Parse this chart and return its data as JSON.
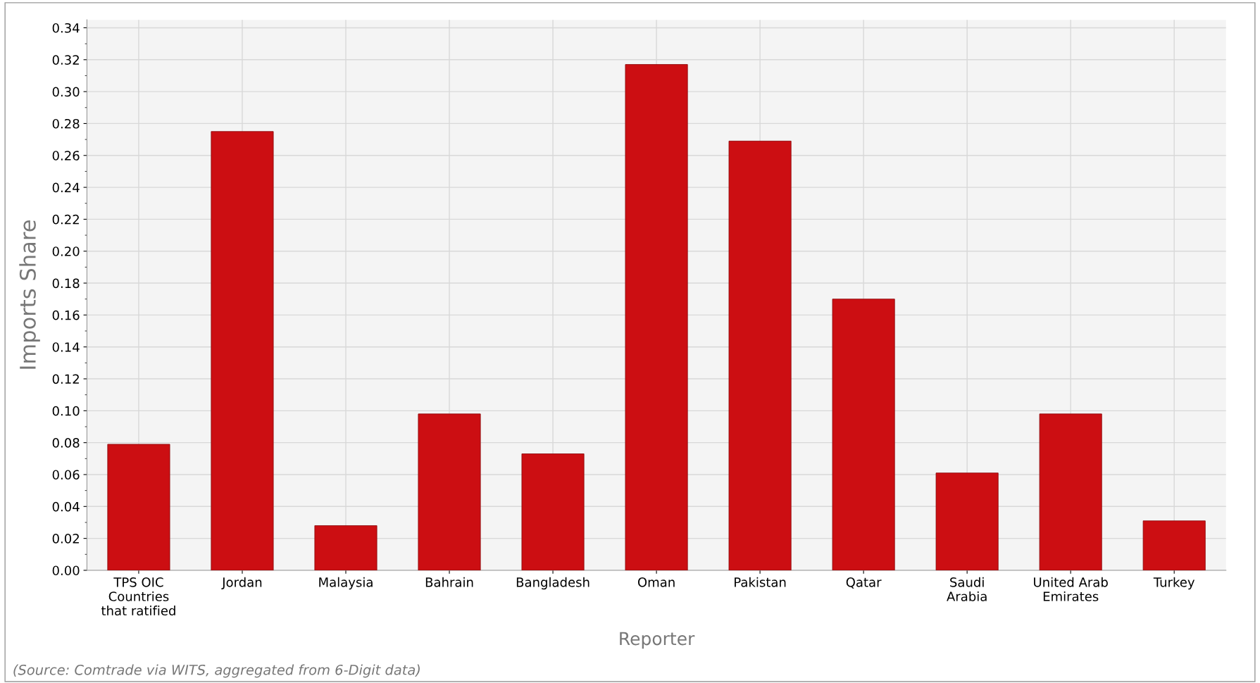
{
  "chart_data": {
    "type": "bar",
    "categories": [
      "TPS OIC\nCountries\nthat ratified",
      "Jordan",
      "Malaysia",
      "Bahrain",
      "Bangladesh",
      "Oman",
      "Pakistan",
      "Qatar",
      "Saudi\nArabia",
      "United Arab\nEmirates",
      "Turkey"
    ],
    "values": [
      0.079,
      0.275,
      0.028,
      0.098,
      0.073,
      0.317,
      0.269,
      0.17,
      0.061,
      0.098,
      0.031
    ],
    "color": "#cc0e12",
    "xlabel": "Reporter",
    "ylabel": "Imports Share",
    "ylim": [
      0,
      0.345
    ],
    "yticks": [
      {
        "value": 0,
        "label": "0.00"
      },
      {
        "value": 0.02,
        "label": "0.02"
      },
      {
        "value": 0.04,
        "label": "0.04"
      },
      {
        "value": 0.06,
        "label": "0.06"
      },
      {
        "value": 0.08,
        "label": "0.08"
      },
      {
        "value": 0.1,
        "label": "0.10"
      },
      {
        "value": 0.12,
        "label": "0.12"
      },
      {
        "value": 0.14,
        "label": "0.14"
      },
      {
        "value": 0.16,
        "label": "0.16"
      },
      {
        "value": 0.18,
        "label": "0.18"
      },
      {
        "value": 0.2,
        "label": "0.20"
      },
      {
        "value": 0.22,
        "label": "0.22"
      },
      {
        "value": 0.24,
        "label": "0.24"
      },
      {
        "value": 0.26,
        "label": "0.26"
      },
      {
        "value": 0.28,
        "label": "0.28"
      },
      {
        "value": 0.3,
        "label": "0.30"
      },
      {
        "value": 0.32,
        "label": "0.32"
      },
      {
        "value": 0.34,
        "label": "0.34"
      }
    ],
    "grid": true,
    "annotations": [
      "(Source: Comtrade via WITS, aggregated from 6-Digit data)"
    ]
  }
}
